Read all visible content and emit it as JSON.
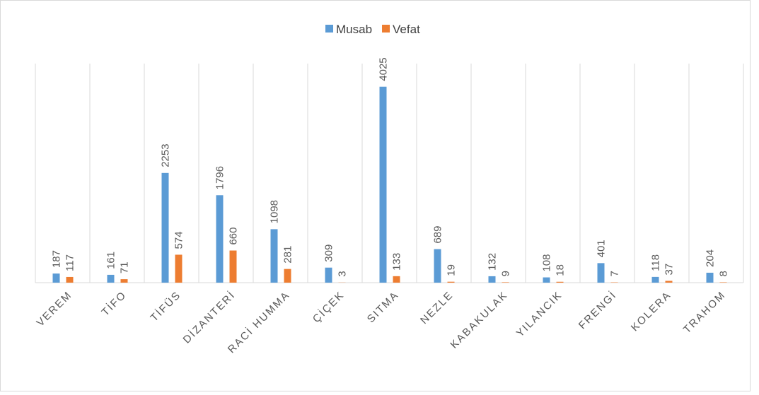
{
  "chart_data": {
    "type": "bar",
    "categories": [
      "VEREM",
      "TİFO",
      "TİFÜS",
      "DİZANTERİ",
      "RACİ HUMMA",
      "ÇİÇEK",
      "SITMA",
      "NEZLE",
      "KABAKULAK",
      "YILANCIK",
      "FRENGİ",
      "KOLERA",
      "TRAHOM"
    ],
    "series": [
      {
        "name": "Musab",
        "color": "#5b9bd5",
        "values": [
          187,
          161,
          2253,
          1796,
          1098,
          309,
          4025,
          689,
          132,
          108,
          401,
          118,
          204
        ]
      },
      {
        "name": "Vefat",
        "color": "#ed7d31",
        "values": [
          117,
          71,
          574,
          660,
          281,
          3,
          133,
          19,
          9,
          18,
          7,
          37,
          8
        ]
      }
    ],
    "ylim": [
      0,
      4500
    ],
    "legend": "top"
  }
}
